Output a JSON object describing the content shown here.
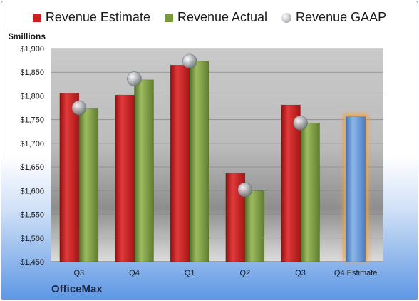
{
  "chart_data": {
    "type": "bar",
    "categories": [
      "Q3",
      "Q4",
      "Q1",
      "Q2",
      "Q3",
      "Q4 Estimate"
    ],
    "series": [
      {
        "name": "Revenue Estimate",
        "values": [
          1806,
          1802,
          1865,
          1637,
          1781,
          null
        ],
        "color": "#cc1f1f"
      },
      {
        "name": "Revenue Actual",
        "values": [
          1773,
          1834,
          1873,
          1600,
          1743,
          null
        ],
        "color": "#7a9a3a"
      },
      {
        "name": "Revenue GAAP",
        "values": [
          1775,
          1836,
          1873,
          1602,
          1743,
          null
        ],
        "color": "#a7abb0"
      }
    ],
    "estimate_bar": {
      "category": "Q4 Estimate",
      "value": 1756,
      "color": "#6d9fdc"
    },
    "ylabel": "$millions",
    "ylim": [
      1450,
      1900
    ],
    "yticks": [
      "$1,450",
      "$1,500",
      "$1,550",
      "$1,600",
      "$1,650",
      "$1,700",
      "$1,750",
      "$1,800",
      "$1,850",
      "$1,900"
    ],
    "company": "OfficeMax",
    "legend_position": "top",
    "grid": true
  }
}
